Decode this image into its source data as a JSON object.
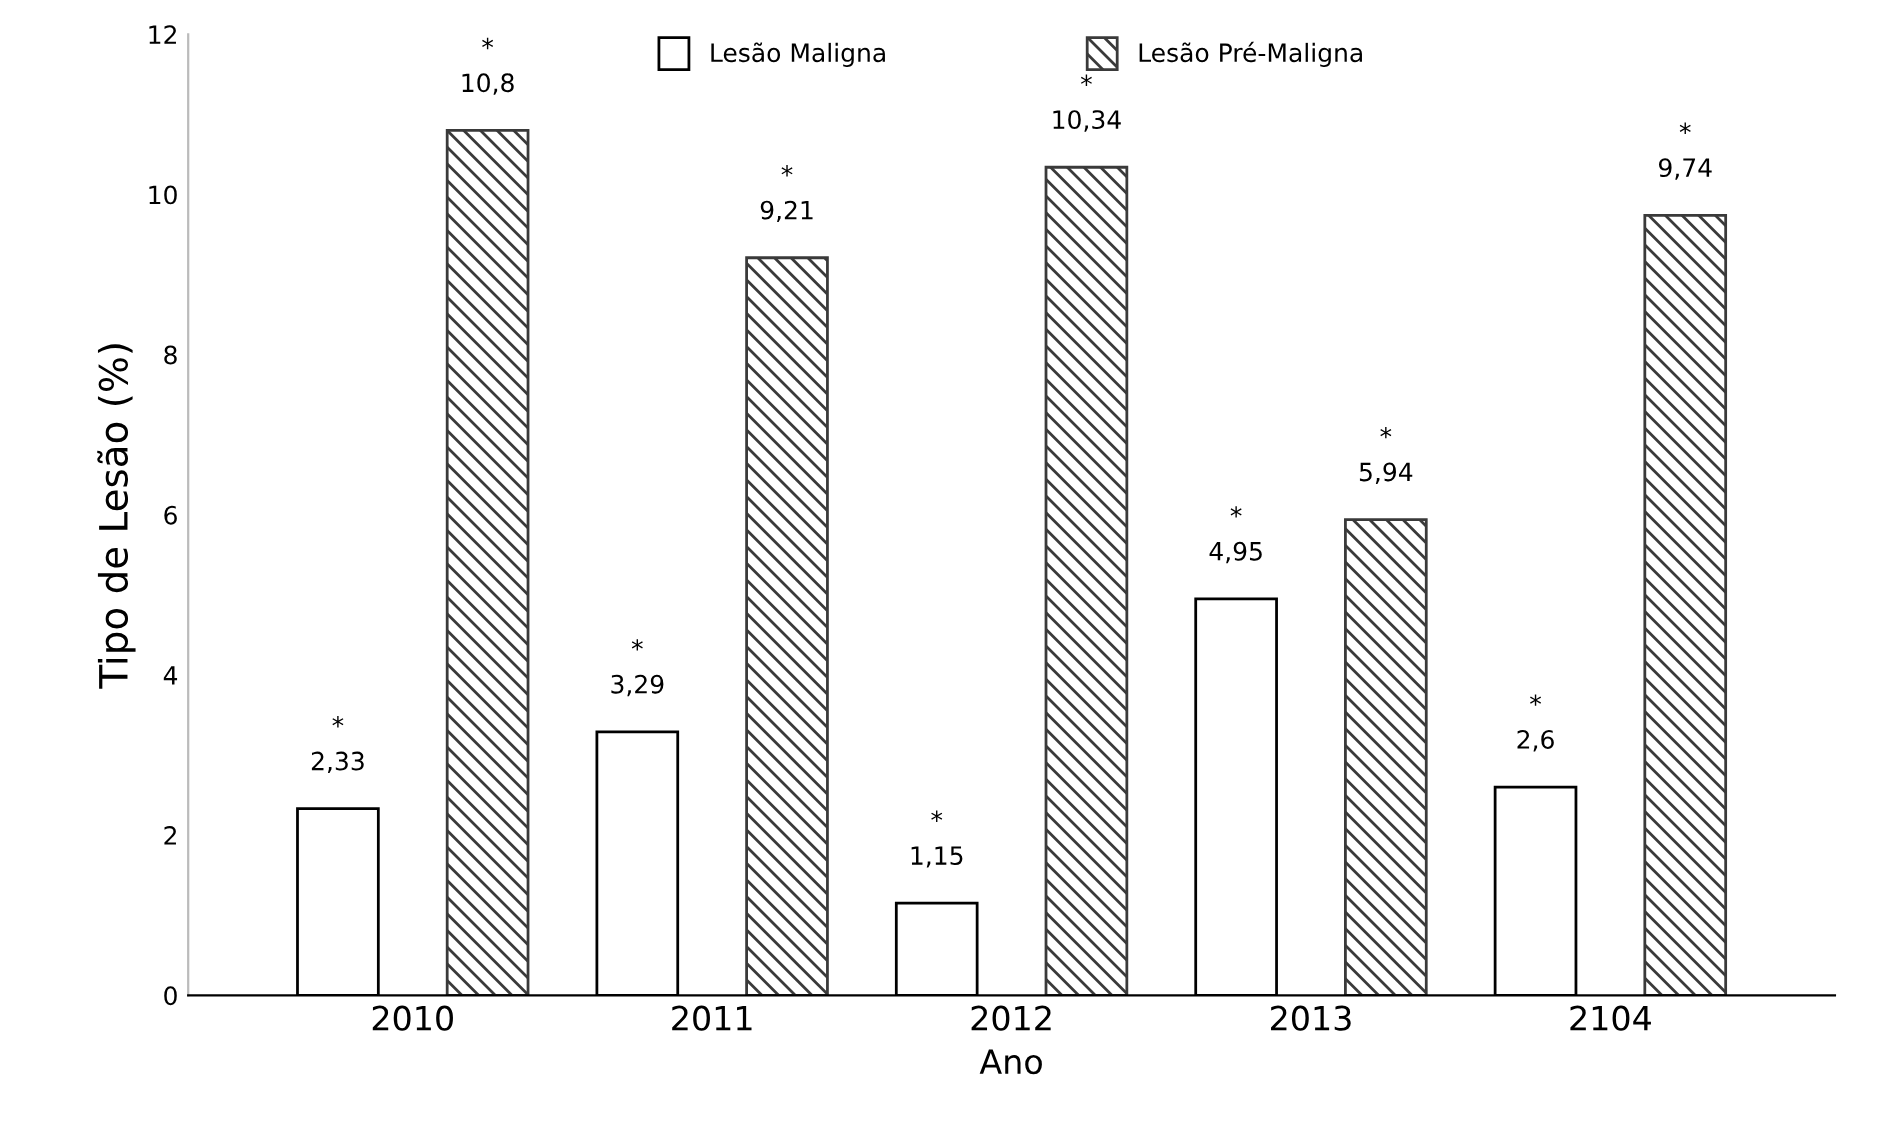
{
  "chart_data": {
    "type": "bar",
    "xlabel": "Ano",
    "ylabel": "Tipo de Lesão (%)",
    "categories": [
      "2010",
      "2011",
      "2012",
      "2013",
      "2104"
    ],
    "series": [
      {
        "name": "Lesão Maligna",
        "color": "#ffffff",
        "values": [
          2.33,
          3.29,
          1.15,
          4.95,
          2.6
        ],
        "value_labels": [
          "*\n2,33",
          "*\n3,29",
          "*\n1,15",
          "*\n4,95",
          "*\n2,6"
        ]
      },
      {
        "name": "Lesão Pré-Maligna",
        "color": "#3a3a3a",
        "values": [
          10.8,
          9.21,
          10.34,
          5.94,
          9.74
        ],
        "value_labels": [
          "*\n10,8",
          "*\n9,21",
          "*\n10,34",
          "*\n5,94",
          "*\n9,74"
        ]
      }
    ],
    "ylim": [
      0,
      12
    ],
    "yticks": [
      0,
      2,
      4,
      6,
      8,
      10,
      12
    ],
    "grid": false,
    "legend": "top"
  }
}
